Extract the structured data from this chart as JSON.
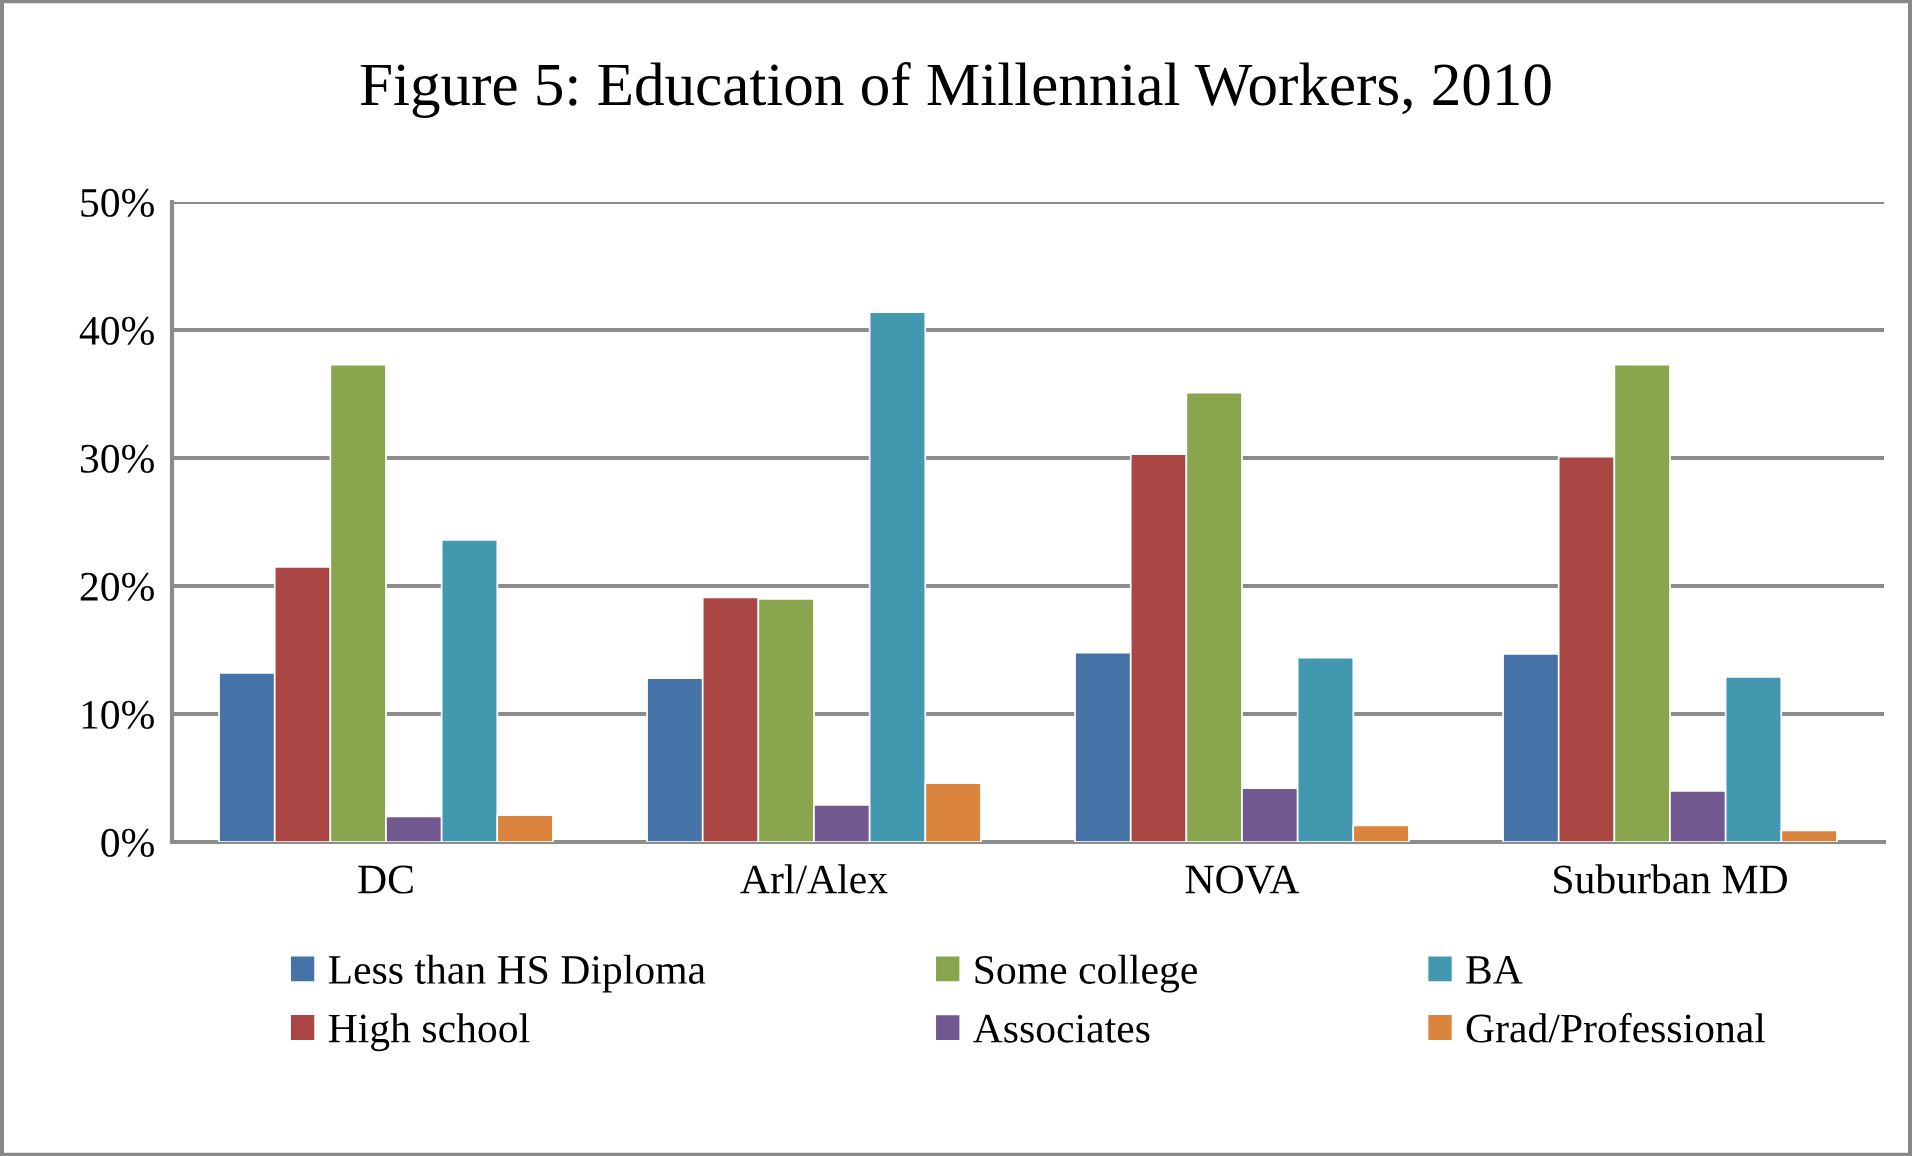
{
  "chart_data": {
    "type": "bar",
    "title": "Figure 5: Education of Millennial Workers, 2010",
    "categories": [
      "DC",
      "Arl/Alex",
      "NOVA",
      "Suburban MD"
    ],
    "series": [
      {
        "name": "Less than HS Diploma",
        "color": "#4572a7",
        "values": [
          13.2,
          12.8,
          14.8,
          14.7
        ]
      },
      {
        "name": "High school",
        "color": "#aa4643",
        "values": [
          21.5,
          19.1,
          30.3,
          30.1
        ]
      },
      {
        "name": "Some college",
        "color": "#89a54e",
        "values": [
          37.3,
          19.0,
          35.1,
          37.3
        ]
      },
      {
        "name": "Associates",
        "color": "#71588f",
        "values": [
          2.0,
          2.9,
          4.2,
          4.0
        ]
      },
      {
        "name": "BA",
        "color": "#4198af",
        "values": [
          23.6,
          41.4,
          14.4,
          12.9
        ]
      },
      {
        "name": "Grad/Professional",
        "color": "#db843d",
        "values": [
          2.1,
          4.6,
          1.3,
          0.9
        ]
      }
    ],
    "ylim": [
      0,
      50
    ],
    "yticks": [
      {
        "value": 0,
        "label": "0%"
      },
      {
        "value": 10,
        "label": "10%"
      },
      {
        "value": 20,
        "label": "20%"
      },
      {
        "value": 30,
        "label": "30%"
      },
      {
        "value": 40,
        "label": "40%"
      },
      {
        "value": 50,
        "label": "50%"
      }
    ],
    "grid": "y",
    "legend": "bottom"
  }
}
